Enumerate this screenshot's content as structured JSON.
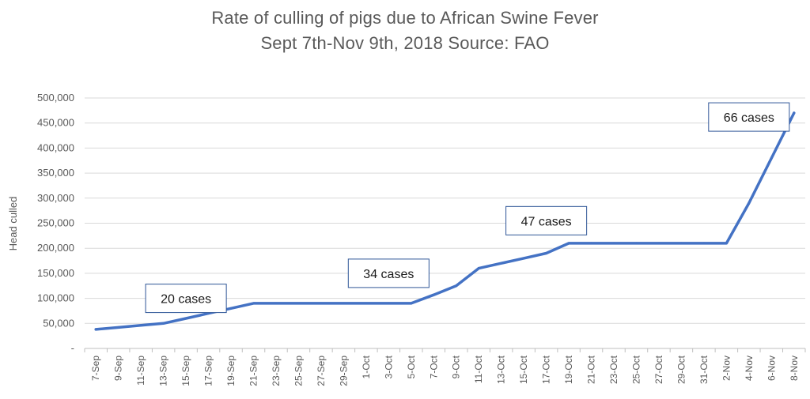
{
  "chart_data": {
    "type": "line",
    "title": "Rate of culling of pigs due to African Swine Fever",
    "subtitle": "Sept 7th-Nov 9th, 2018 Source: FAO",
    "ylabel": "Head culled",
    "xlabel": "",
    "ylim": [
      0,
      500000
    ],
    "yticks": [
      0,
      50000,
      100000,
      150000,
      200000,
      250000,
      300000,
      350000,
      400000,
      450000,
      500000
    ],
    "ytick_labels": [
      "-",
      "50,000",
      "100,000",
      "150,000",
      "200,000",
      "250,000",
      "300,000",
      "350,000",
      "400,000",
      "450,000",
      "500,000"
    ],
    "grid": true,
    "line_color": "#4472C4",
    "categories": [
      "7-Sep",
      "9-Sep",
      "11-Sep",
      "13-Sep",
      "15-Sep",
      "17-Sep",
      "19-Sep",
      "21-Sep",
      "23-Sep",
      "25-Sep",
      "27-Sep",
      "29-Sep",
      "1-Oct",
      "3-Oct",
      "5-Oct",
      "7-Oct",
      "9-Oct",
      "11-Oct",
      "13-Oct",
      "15-Oct",
      "17-Oct",
      "19-Oct",
      "21-Oct",
      "23-Oct",
      "25-Oct",
      "27-Oct",
      "29-Oct",
      "31-Oct",
      "2-Nov",
      "4-Nov",
      "6-Nov",
      "8-Nov"
    ],
    "series": [
      {
        "values": [
          38000,
          42000,
          46000,
          50000,
          60000,
          70000,
          80000,
          90000,
          90000,
          90000,
          90000,
          90000,
          90000,
          90000,
          90000,
          107000,
          125000,
          160000,
          170000,
          180000,
          190000,
          210000,
          210000,
          210000,
          210000,
          210000,
          210000,
          210000,
          210000,
          290000,
          380000,
          470000
        ]
      }
    ],
    "annotations": [
      {
        "text": "20 cases",
        "category": "15-Sep",
        "value": 100000
      },
      {
        "text": "34 cases",
        "category": "3-Oct",
        "value": 150000
      },
      {
        "text": "47 cases",
        "category": "17-Oct",
        "value": 255000
      },
      {
        "text": "66 cases",
        "category": "4-Nov",
        "value": 462000
      }
    ]
  }
}
